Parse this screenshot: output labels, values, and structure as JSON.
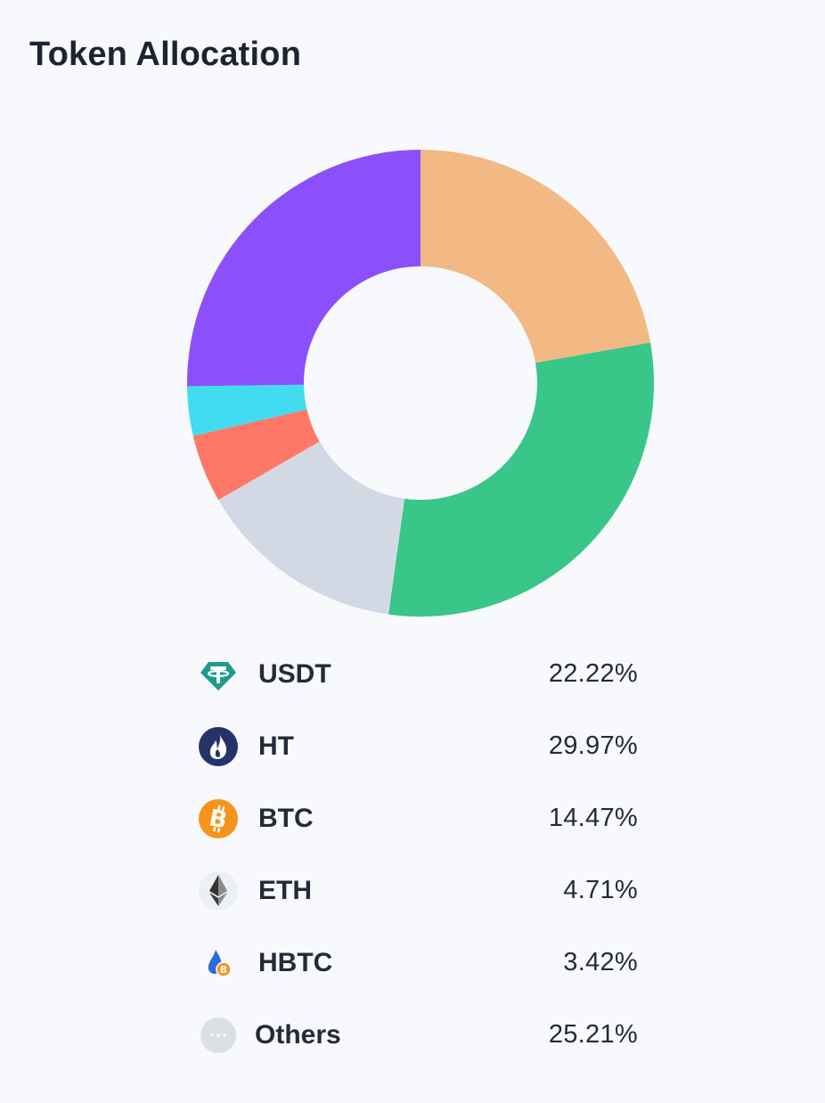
{
  "header": {
    "title": "Token Allocation"
  },
  "chart_data": {
    "type": "pie",
    "style": "donut",
    "start": "top, clockwise",
    "slices": [
      {
        "label": "USDT",
        "value": 22.22,
        "display": "22.22%",
        "color": "#f2b984",
        "icon": "tether-icon"
      },
      {
        "label": "HT",
        "value": 29.97,
        "display": "29.97%",
        "color": "#38c689",
        "icon": "huobi-token-icon"
      },
      {
        "label": "BTC",
        "value": 14.47,
        "display": "14.47%",
        "color": "#d2d9e5",
        "icon": "bitcoin-icon"
      },
      {
        "label": "ETH",
        "value": 4.71,
        "display": "4.71%",
        "color": "#fd7866",
        "icon": "ethereum-icon"
      },
      {
        "label": "HBTC",
        "value": 3.42,
        "display": "3.42%",
        "color": "#41dcf0",
        "icon": "hbtc-icon"
      },
      {
        "label": "Others",
        "value": 25.21,
        "display": "25.21%",
        "color": "#8b50fb",
        "icon": "more-dots-icon"
      }
    ],
    "legend_position": "bottom"
  }
}
